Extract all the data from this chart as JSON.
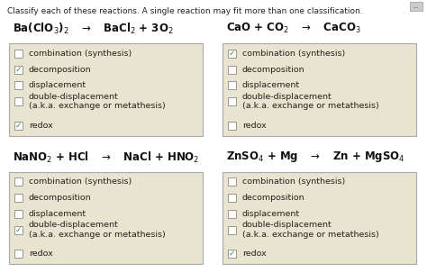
{
  "title": "Classify each of these reactions. A single reaction may fit more than one classification.",
  "page_bg": "#ffffff",
  "box_bg": "#e8e4d0",
  "box_edge": "#aaaaaa",
  "check_color": "#4a8a4a",
  "reactions": [
    {
      "eq_parts": [
        {
          "text": "Ba",
          "bold": true,
          "sub": false
        },
        {
          "text": "(ClO",
          "bold": true,
          "sub": false
        },
        {
          "text": "3",
          "bold": true,
          "sub": true
        },
        {
          "text": ")",
          "bold": true,
          "sub": false
        },
        {
          "text": "2",
          "bold": true,
          "sub": true
        },
        {
          "text": "  →  BaCl",
          "bold": true,
          "sub": false
        },
        {
          "text": "2",
          "bold": true,
          "sub": true
        },
        {
          "text": " + 3O",
          "bold": true,
          "sub": false
        },
        {
          "text": "2",
          "bold": true,
          "sub": true
        }
      ],
      "eq_str": "Ba(ClO$_3$)$_2$   $\\rightarrow$   BaCl$_2$ + 3O$_2$",
      "options": [
        "combination (synthesis)",
        "decomposition",
        "displacement",
        "double-displacement\n(a.k.a. exchange or metathesis)",
        "redox"
      ],
      "checked": [
        false,
        true,
        false,
        false,
        true
      ],
      "col": 0,
      "row": 0
    },
    {
      "eq_str": "CaO + CO$_2$   $\\rightarrow$   CaCO$_3$",
      "options": [
        "combination (synthesis)",
        "decomposition",
        "displacement",
        "double-displacement\n(a.k.a. exchange or metathesis)",
        "redox"
      ],
      "checked": [
        true,
        false,
        false,
        false,
        false
      ],
      "col": 1,
      "row": 0
    },
    {
      "eq_str": "NaNO$_2$ + HCl   $\\rightarrow$   NaCl + HNO$_2$",
      "options": [
        "combination (synthesis)",
        "decomposition",
        "displacement",
        "double-displacement\n(a.k.a. exchange or metathesis)",
        "redox"
      ],
      "checked": [
        false,
        false,
        false,
        true,
        false
      ],
      "col": 0,
      "row": 1
    },
    {
      "eq_str": "ZnSO$_4$ + Mg   $\\rightarrow$   Zn + MgSO$_4$",
      "options": [
        "combination (synthesis)",
        "decomposition",
        "displacement",
        "double-displacement\n(a.k.a. exchange or metathesis)",
        "redox"
      ],
      "checked": [
        false,
        false,
        false,
        false,
        true
      ],
      "col": 1,
      "row": 1
    }
  ],
  "title_fontsize": 6.5,
  "eq_fontsize": 8.5,
  "label_fontsize": 6.8,
  "cb_fontsize": 6.5
}
